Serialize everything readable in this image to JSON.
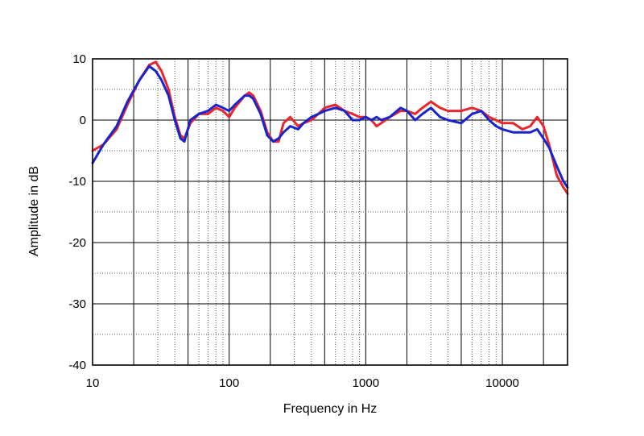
{
  "chart_data": {
    "type": "line",
    "title": "",
    "xlabel": "Frequency  in Hz",
    "ylabel": "Amplitude in dB",
    "xscale": "log",
    "xlim": [
      10,
      30000
    ],
    "ylim": [
      -40,
      10
    ],
    "x_ticks": [
      10,
      100,
      1000,
      10000
    ],
    "x_tick_labels": [
      "10",
      "100",
      "1000",
      "10000"
    ],
    "y_ticks": [
      10,
      0,
      -10,
      -20,
      -30,
      -40
    ],
    "y_tick_labels": [
      "10",
      "0",
      "-10",
      "-20",
      "-30",
      "-40"
    ],
    "y_minor_step": 5,
    "grid": true,
    "series": [
      {
        "name": "red",
        "color": "#e8262c",
        "points": [
          [
            10,
            -5
          ],
          [
            12,
            -4
          ],
          [
            15,
            -1.5
          ],
          [
            18,
            2.5
          ],
          [
            22,
            6.5
          ],
          [
            26,
            9
          ],
          [
            29,
            9.5
          ],
          [
            32,
            8
          ],
          [
            36,
            5
          ],
          [
            40,
            0.5
          ],
          [
            44,
            -2.5
          ],
          [
            47,
            -3
          ],
          [
            52,
            -0.5
          ],
          [
            60,
            1
          ],
          [
            70,
            1
          ],
          [
            80,
            2
          ],
          [
            90,
            1.5
          ],
          [
            100,
            0.5
          ],
          [
            110,
            2
          ],
          [
            130,
            4
          ],
          [
            140,
            4.5
          ],
          [
            150,
            4
          ],
          [
            170,
            1.5
          ],
          [
            190,
            -2
          ],
          [
            210,
            -3.5
          ],
          [
            230,
            -3.5
          ],
          [
            250,
            -0.5
          ],
          [
            280,
            0.5
          ],
          [
            320,
            -1
          ],
          [
            350,
            -0.5
          ],
          [
            400,
            0
          ],
          [
            450,
            1
          ],
          [
            500,
            2
          ],
          [
            600,
            2.5
          ],
          [
            700,
            1.5
          ],
          [
            800,
            1
          ],
          [
            900,
            0.5
          ],
          [
            1000,
            0.5
          ],
          [
            1100,
            0
          ],
          [
            1200,
            -1
          ],
          [
            1300,
            -0.5
          ],
          [
            1500,
            0.5
          ],
          [
            1800,
            1.5
          ],
          [
            2000,
            1.5
          ],
          [
            2300,
            1
          ],
          [
            2600,
            2
          ],
          [
            3000,
            3
          ],
          [
            3500,
            2
          ],
          [
            4000,
            1.5
          ],
          [
            5000,
            1.5
          ],
          [
            6000,
            2
          ],
          [
            7000,
            1.5
          ],
          [
            8000,
            0.5
          ],
          [
            9000,
            0
          ],
          [
            10000,
            -0.5
          ],
          [
            12000,
            -0.5
          ],
          [
            14000,
            -1.5
          ],
          [
            16000,
            -1
          ],
          [
            18000,
            0.5
          ],
          [
            20000,
            -1
          ],
          [
            22000,
            -4
          ],
          [
            25000,
            -9
          ],
          [
            28000,
            -11
          ],
          [
            30000,
            -12
          ]
        ]
      },
      {
        "name": "blue",
        "color": "#1a24cc",
        "points": [
          [
            10,
            -7
          ],
          [
            12,
            -4
          ],
          [
            15,
            -1
          ],
          [
            18,
            3
          ],
          [
            22,
            6.5
          ],
          [
            26,
            8.8
          ],
          [
            29,
            8
          ],
          [
            32,
            6.5
          ],
          [
            36,
            4
          ],
          [
            40,
            0
          ],
          [
            44,
            -3
          ],
          [
            47,
            -3.5
          ],
          [
            52,
            0
          ],
          [
            60,
            1
          ],
          [
            70,
            1.5
          ],
          [
            80,
            2.5
          ],
          [
            90,
            2
          ],
          [
            100,
            1.5
          ],
          [
            110,
            2.5
          ],
          [
            130,
            4
          ],
          [
            140,
            4
          ],
          [
            150,
            3.5
          ],
          [
            170,
            1
          ],
          [
            190,
            -2.5
          ],
          [
            210,
            -3.5
          ],
          [
            230,
            -3
          ],
          [
            250,
            -2
          ],
          [
            280,
            -1
          ],
          [
            320,
            -1.5
          ],
          [
            350,
            -0.5
          ],
          [
            400,
            0.5
          ],
          [
            450,
            1
          ],
          [
            500,
            1.5
          ],
          [
            600,
            2
          ],
          [
            700,
            1.5
          ],
          [
            800,
            0
          ],
          [
            900,
            0
          ],
          [
            1000,
            0.5
          ],
          [
            1100,
            0
          ],
          [
            1200,
            0.5
          ],
          [
            1300,
            0
          ],
          [
            1500,
            0.5
          ],
          [
            1800,
            2
          ],
          [
            2000,
            1.5
          ],
          [
            2300,
            0
          ],
          [
            2600,
            1
          ],
          [
            3000,
            2
          ],
          [
            3500,
            0.5
          ],
          [
            4000,
            0
          ],
          [
            5000,
            -0.5
          ],
          [
            6000,
            1
          ],
          [
            7000,
            1.5
          ],
          [
            8000,
            0
          ],
          [
            9000,
            -1
          ],
          [
            10000,
            -1.5
          ],
          [
            12000,
            -2
          ],
          [
            14000,
            -2
          ],
          [
            16000,
            -2
          ],
          [
            18000,
            -1.5
          ],
          [
            20000,
            -3
          ],
          [
            22000,
            -4.5
          ],
          [
            25000,
            -7.5
          ],
          [
            28000,
            -10
          ],
          [
            30000,
            -11
          ]
        ]
      }
    ]
  }
}
